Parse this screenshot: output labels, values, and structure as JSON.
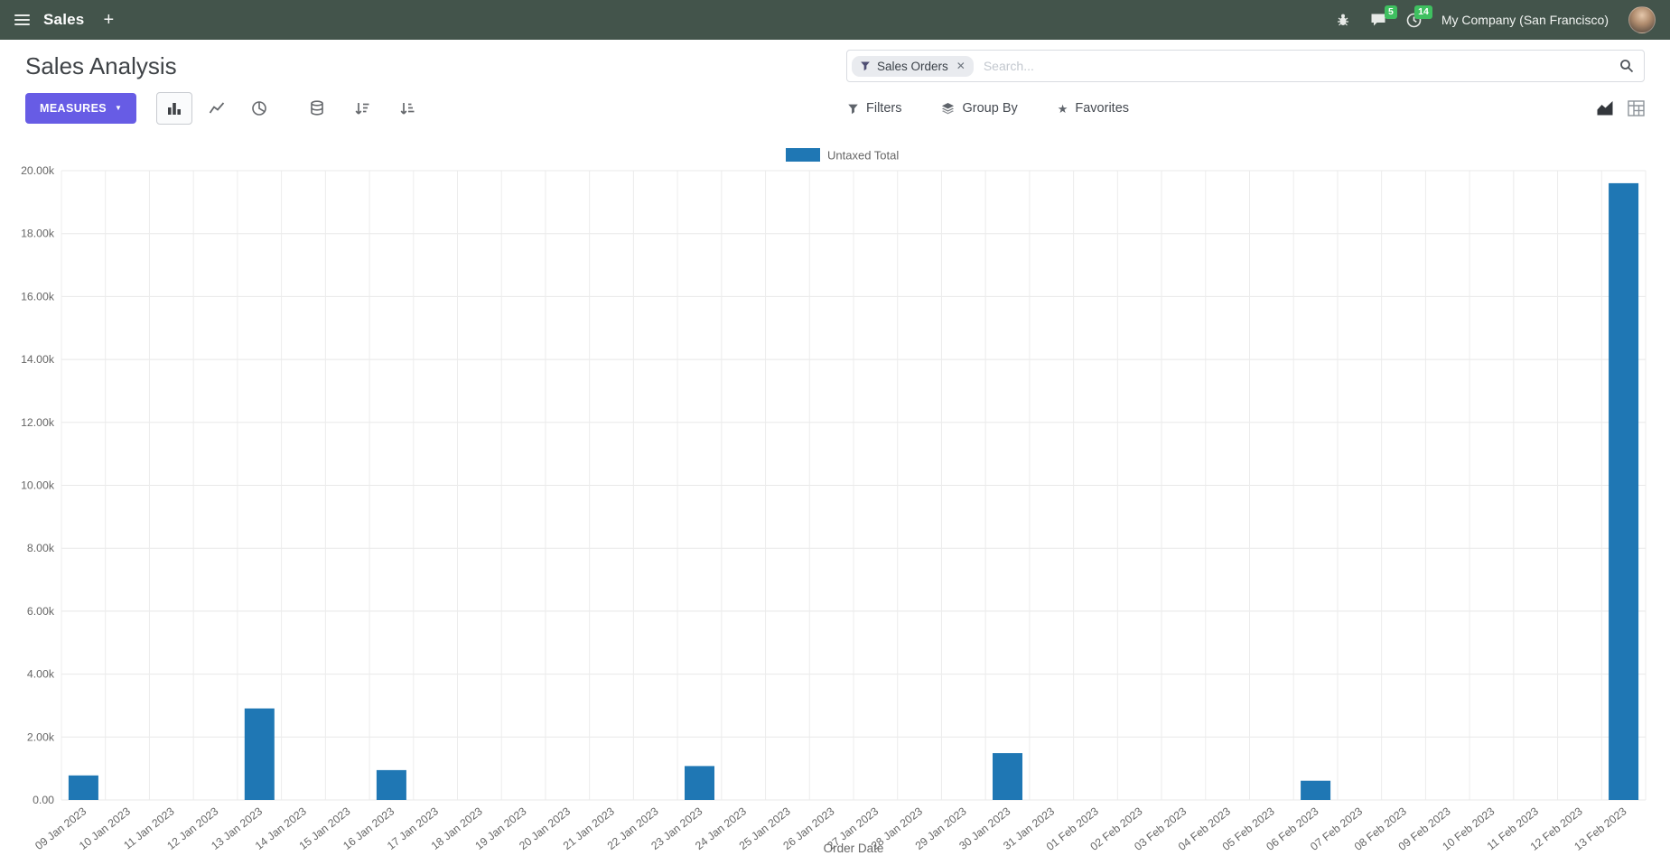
{
  "nav": {
    "app_menu_label": "Sales",
    "new_label": "+",
    "company_name": "My Company (San Francisco)",
    "message_badge": "5",
    "activity_badge": "14"
  },
  "icons": {
    "star": "★",
    "caret_down": "▼"
  },
  "control_panel": {
    "title": "Sales Analysis",
    "measures_button": "MEASURES",
    "search": {
      "facet_label": "Sales Orders",
      "remove_facet": "✕",
      "placeholder": "Search..."
    },
    "filters": "Filters",
    "group_by": "Group By",
    "favorites": "Favorites"
  },
  "chart_data": {
    "type": "bar",
    "title": "",
    "legend_position": "top",
    "grid": true,
    "xlabel": "Order Date",
    "ylabel": "",
    "ylim": [
      0,
      20000
    ],
    "y_tick_values": [
      0,
      2000,
      4000,
      6000,
      8000,
      10000,
      12000,
      14000,
      16000,
      18000,
      20000
    ],
    "y_tick_labels": [
      "0.00",
      "2.00k",
      "4.00k",
      "6.00k",
      "8.00k",
      "10.00k",
      "12.00k",
      "14.00k",
      "16.00k",
      "18.00k",
      "20.00k"
    ],
    "categories": [
      "09 Jan 2023",
      "10 Jan 2023",
      "11 Jan 2023",
      "12 Jan 2023",
      "13 Jan 2023",
      "14 Jan 2023",
      "15 Jan 2023",
      "16 Jan 2023",
      "17 Jan 2023",
      "18 Jan 2023",
      "19 Jan 2023",
      "20 Jan 2023",
      "21 Jan 2023",
      "22 Jan 2023",
      "23 Jan 2023",
      "24 Jan 2023",
      "25 Jan 2023",
      "26 Jan 2023",
      "27 Jan 2023",
      "28 Jan 2023",
      "29 Jan 2023",
      "30 Jan 2023",
      "31 Jan 2023",
      "01 Feb 2023",
      "02 Feb 2023",
      "03 Feb 2023",
      "04 Feb 2023",
      "05 Feb 2023",
      "06 Feb 2023",
      "07 Feb 2023",
      "08 Feb 2023",
      "09 Feb 2023",
      "10 Feb 2023",
      "11 Feb 2023",
      "12 Feb 2023",
      "13 Feb 2023"
    ],
    "series": [
      {
        "name": "Untaxed Total",
        "color": "#1f77b4",
        "values": [
          780,
          0,
          0,
          0,
          2910,
          0,
          0,
          950,
          0,
          0,
          0,
          0,
          0,
          0,
          1080,
          0,
          0,
          0,
          0,
          0,
          0,
          1490,
          0,
          0,
          0,
          0,
          0,
          0,
          610,
          0,
          0,
          0,
          0,
          0,
          0,
          19600
        ]
      }
    ]
  }
}
